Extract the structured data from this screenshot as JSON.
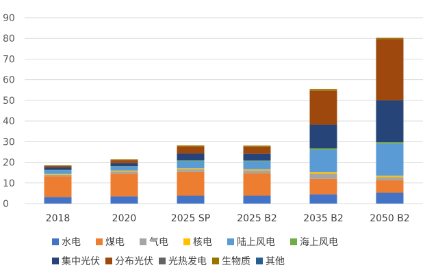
{
  "chart_data": {
    "type": "bar",
    "stacked": true,
    "title": "",
    "xlabel": "",
    "ylabel": "",
    "ylim": [
      0,
      90
    ],
    "yticks": [
      0,
      10,
      20,
      30,
      40,
      50,
      60,
      70,
      80,
      90
    ],
    "grid": true,
    "legend_position": "bottom",
    "categories": [
      "2018",
      "2020",
      "2025 SP",
      "2025 B2",
      "2035 B2",
      "2050 B2"
    ],
    "series": [
      {
        "name": "水电",
        "color": "#4472C4",
        "values": [
          3.2,
          3.5,
          3.8,
          3.8,
          4.5,
          5.3
        ]
      },
      {
        "name": "煤电",
        "color": "#ED7D31",
        "values": [
          10.0,
          11.0,
          11.5,
          11.0,
          7.5,
          6.0
        ]
      },
      {
        "name": "气电",
        "color": "#A5A5A5",
        "values": [
          0.8,
          1.0,
          1.3,
          1.3,
          2.5,
          1.5
        ]
      },
      {
        "name": "核电",
        "color": "#FFC000",
        "values": [
          0.4,
          0.5,
          0.5,
          0.5,
          0.7,
          0.7
        ]
      },
      {
        "name": "陆上风电",
        "color": "#5B9BD5",
        "values": [
          1.8,
          2.0,
          3.5,
          3.9,
          10.8,
          15.5
        ]
      },
      {
        "name": "海上风电",
        "color": "#70AD47",
        "values": [
          0.1,
          0.1,
          0.4,
          0.4,
          0.7,
          0.7
        ]
      },
      {
        "name": "集中光伏",
        "color": "#264478",
        "values": [
          1.3,
          1.5,
          3.3,
          3.3,
          11.5,
          20.3
        ]
      },
      {
        "name": "分布光伏",
        "color": "#9E480E",
        "values": [
          0.6,
          1.5,
          3.3,
          3.3,
          16.5,
          29.7
        ]
      },
      {
        "name": "光热发电",
        "color": "#636363",
        "values": [
          0.0,
          0.0,
          0.0,
          0.0,
          0.0,
          0.0
        ]
      },
      {
        "name": "生物质",
        "color": "#997300",
        "values": [
          0.3,
          0.3,
          0.6,
          0.6,
          0.8,
          0.6
        ]
      },
      {
        "name": "其他",
        "color": "#255E91",
        "values": [
          0.0,
          0.0,
          0.0,
          0.0,
          0.0,
          0.0
        ]
      }
    ]
  }
}
